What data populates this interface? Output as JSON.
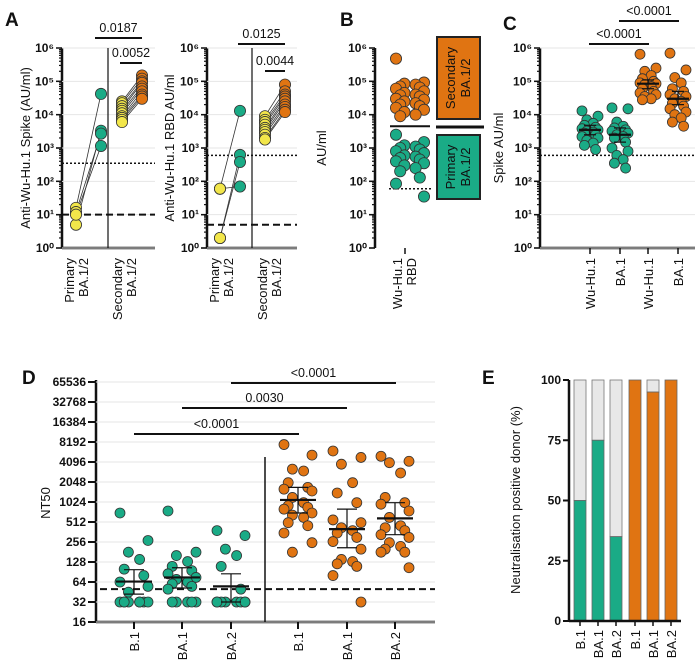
{
  "colors": {
    "primary_yellow": "#f2e64a",
    "primary_green": "#1aab86",
    "secondary_orange": "#e07412",
    "negative_grey": "#e8e8e8"
  },
  "chart_data": [
    {
      "id": "A1",
      "panel_letter": "A",
      "type": "scatter-paired",
      "ylabel": "Anti-Wu-Hu.1 Spike (AU/ml)",
      "yscale": "log10",
      "ylim": [
        1,
        1000000
      ],
      "ytick_labels": [
        "10⁰",
        "10¹",
        "10²",
        "10³",
        "10⁴",
        "10⁵",
        "10⁶"
      ],
      "categories": [
        [
          "Primary",
          "BA.1/2"
        ],
        [
          "Secondary",
          "BA.1/2"
        ]
      ],
      "thresholds": {
        "dotted": 350,
        "dashed": 10
      },
      "primary_pairs": [
        [
          16,
          42000
        ],
        [
          5,
          3300
        ],
        [
          12,
          2700
        ],
        [
          10,
          1150
        ]
      ],
      "secondary_pairs": [
        [
          25000,
          150000
        ],
        [
          22000,
          120000
        ],
        [
          18000,
          100000
        ],
        [
          15000,
          90000
        ],
        [
          13000,
          70000
        ],
        [
          11000,
          60000
        ],
        [
          9000,
          50000
        ],
        [
          8000,
          40000
        ],
        [
          7000,
          35000
        ],
        [
          6000,
          30000
        ]
      ],
      "significance": [
        {
          "label": "0.0187"
        },
        {
          "label": "0.0052"
        }
      ]
    },
    {
      "id": "A2",
      "type": "scatter-paired",
      "ylabel": "Anti-Wu-Hu.1 RBD AU/ml",
      "yscale": "log10",
      "ylim": [
        1,
        1000000
      ],
      "ytick_labels": [
        "10⁰",
        "10¹",
        "10²",
        "10³",
        "10⁴",
        "10⁵",
        "10⁶"
      ],
      "categories": [
        [
          "Primary",
          "BA.1/2"
        ],
        [
          "Secondary",
          "BA.1/2"
        ]
      ],
      "thresholds": {
        "dotted": 600,
        "dashed": 5
      },
      "primary_pairs": [
        [
          60,
          13000
        ],
        [
          2,
          620
        ],
        [
          2,
          380
        ],
        [
          60,
          70
        ]
      ],
      "secondary_pairs": [
        [
          9000,
          80000
        ],
        [
          7000,
          50000
        ],
        [
          6000,
          40000
        ],
        [
          5000,
          35000
        ],
        [
          4000,
          30000
        ],
        [
          3500,
          25000
        ],
        [
          3000,
          20000
        ],
        [
          2500,
          17000
        ],
        [
          2000,
          14000
        ],
        [
          1800,
          12000
        ]
      ],
      "significance": [
        {
          "label": "0.0125"
        },
        {
          "label": "0.0044"
        }
      ]
    },
    {
      "id": "B",
      "panel_letter": "B",
      "type": "scatter",
      "ylabel": "AU/ml",
      "yscale": "log10",
      "ylim": [
        1,
        1000000
      ],
      "ytick_labels": [
        "10⁰",
        "10¹",
        "10²",
        "10³",
        "10⁴",
        "10⁵",
        "10⁶"
      ],
      "categories": [
        [
          "Wu-Hu.1",
          "RBD"
        ]
      ],
      "cutoff_line": 4500,
      "dotted": 60,
      "legend": [
        {
          "line1": "Secondary",
          "line2": "BA.1/2",
          "color": "#e07412"
        },
        {
          "line1": "Primary",
          "line2": "BA.1/2",
          "color": "#1aab86"
        }
      ],
      "secondary_values": [
        480000,
        92000,
        85000,
        80000,
        70000,
        65000,
        60000,
        50000,
        45000,
        40000,
        38000,
        35000,
        30000,
        28000,
        25000,
        22000,
        20000,
        18000,
        16000,
        14000,
        12000,
        10000,
        9000
      ],
      "primary_values": [
        2500,
        1500,
        1200,
        1100,
        1000,
        900,
        800,
        700,
        600,
        550,
        500,
        450,
        400,
        350,
        300,
        250,
        200,
        130,
        85,
        35
      ]
    },
    {
      "id": "C",
      "panel_letter": "C",
      "type": "scatter",
      "ylabel": "Spike AU/ml",
      "yscale": "log10",
      "ylim": [
        1,
        1000000
      ],
      "ytick_labels": [
        "10⁰",
        "10¹",
        "10²",
        "10³",
        "10⁴",
        "10⁵",
        "10⁶"
      ],
      "categories": [
        "Wu-Hu.1",
        "BA.1",
        "Wu-Hu.1",
        "BA.1"
      ],
      "dotted": 600,
      "series": [
        {
          "group": "primary",
          "median": 3500,
          "ci": [
            2500,
            4800
          ],
          "values": [
            13000,
            9000,
            7000,
            5500,
            4800,
            4200,
            3800,
            3500,
            3200,
            3000,
            2800,
            2500,
            2200,
            2000,
            1700,
            1400,
            1200,
            900
          ]
        },
        {
          "group": "primary",
          "median": 2500,
          "ci": [
            1500,
            4000
          ],
          "values": [
            16000,
            15000,
            6000,
            4500,
            4000,
            3500,
            3200,
            2800,
            2500,
            2200,
            2000,
            1500,
            1000,
            800,
            600,
            450,
            350,
            250
          ]
        },
        {
          "group": "secondary",
          "median": 85000,
          "ci": [
            60000,
            110000
          ],
          "values": [
            650000,
            250000,
            200000,
            150000,
            120000,
            100000,
            90000,
            85000,
            80000,
            70000,
            60000,
            50000,
            45000,
            40000,
            35000,
            30000,
            28000
          ]
        },
        {
          "group": "secondary",
          "median": 30000,
          "ci": [
            20000,
            50000
          ],
          "values": [
            700000,
            220000,
            130000,
            90000,
            60000,
            50000,
            40000,
            35000,
            30000,
            25000,
            22000,
            18000,
            15000,
            12000,
            10000,
            8000,
            6000,
            4500
          ]
        }
      ],
      "significance": [
        {
          "label": "<0.0001"
        },
        {
          "label": "<0.0001"
        }
      ]
    },
    {
      "id": "D",
      "panel_letter": "D",
      "type": "scatter",
      "ylabel": "NT50",
      "yscale": "log2",
      "ylim": [
        16,
        65536
      ],
      "ytick_labels": [
        "16",
        "32",
        "64",
        "128",
        "256",
        "512",
        "1024",
        "2048",
        "4096",
        "8192",
        "16384",
        "32768",
        "65536"
      ],
      "categories": [
        "B.1",
        "BA.1",
        "BA.2",
        "B.1",
        "BA.1",
        "BA.2"
      ],
      "dashed": 50,
      "series": [
        {
          "group": "primary",
          "median": 65,
          "ci": [
            42,
            98
          ],
          "values": [
            700,
            270,
            180,
            140,
            100,
            80,
            64,
            55,
            45,
            32,
            32,
            32,
            32,
            32,
            32,
            32,
            32
          ]
        },
        {
          "group": "primary",
          "median": 75,
          "ci": [
            52,
            105
          ],
          "values": [
            750,
            180,
            160,
            130,
            110,
            95,
            85,
            75,
            70,
            64,
            60,
            55,
            50,
            32,
            32,
            32,
            32,
            32
          ]
        },
        {
          "group": "primary",
          "median": 55,
          "ci": [
            32,
            85
          ],
          "values": [
            380,
            320,
            200,
            160,
            110,
            50,
            32,
            32,
            32,
            32,
            32,
            32,
            32,
            32
          ]
        },
        {
          "group": "secondary",
          "median": 1100,
          "ci": [
            700,
            1700
          ],
          "values": [
            7500,
            5200,
            3200,
            3000,
            2000,
            1700,
            1600,
            1500,
            1200,
            1000,
            900,
            850,
            800,
            700,
            650,
            600,
            500,
            450,
            350,
            250,
            180
          ]
        },
        {
          "group": "secondary",
          "median": 400,
          "ci": [
            210,
            800
          ],
          "values": [
            6000,
            4800,
            3800,
            2000,
            1400,
            1000,
            550,
            500,
            420,
            380,
            350,
            300,
            260,
            200,
            140,
            130,
            120,
            110,
            80,
            32
          ]
        },
        {
          "group": "secondary",
          "median": 580,
          "ci": [
            330,
            1000
          ],
          "values": [
            5000,
            4200,
            4000,
            2800,
            1200,
            1000,
            950,
            750,
            600,
            450,
            420,
            380,
            330,
            300,
            250,
            220,
            200,
            180,
            180,
            105
          ]
        }
      ],
      "significance": [
        {
          "label": "<0.0001"
        },
        {
          "label": "0.0030"
        },
        {
          "label": "<0.0001"
        }
      ]
    },
    {
      "id": "E",
      "panel_letter": "E",
      "type": "bar",
      "ylabel": "Neutralisation positive donor (%)",
      "ylim": [
        0,
        100
      ],
      "ytick_labels": [
        "0",
        "25",
        "50",
        "75",
        "100"
      ],
      "categories": [
        "B.1",
        "BA.1",
        "BA.2",
        "B.1",
        "BA.1",
        "BA.2"
      ],
      "groups": [
        "primary",
        "primary",
        "primary",
        "secondary",
        "secondary",
        "secondary"
      ],
      "values": [
        50,
        75,
        35,
        100,
        95,
        100
      ]
    }
  ]
}
